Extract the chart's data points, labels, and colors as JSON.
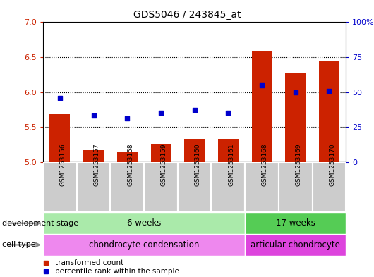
{
  "title": "GDS5046 / 243845_at",
  "samples": [
    "GSM1253156",
    "GSM1253157",
    "GSM1253158",
    "GSM1253159",
    "GSM1253160",
    "GSM1253161",
    "GSM1253168",
    "GSM1253169",
    "GSM1253170"
  ],
  "bar_values": [
    5.68,
    5.17,
    5.15,
    5.25,
    5.33,
    5.33,
    6.58,
    6.28,
    6.44
  ],
  "dot_values": [
    46,
    33,
    31,
    35,
    37,
    35,
    55,
    50,
    51
  ],
  "ylim_left": [
    5.0,
    7.0
  ],
  "ylim_right": [
    0,
    100
  ],
  "yticks_left": [
    5.0,
    5.5,
    6.0,
    6.5,
    7.0
  ],
  "yticks_right": [
    0,
    25,
    50,
    75,
    100
  ],
  "ytick_labels_right": [
    "0",
    "25",
    "50",
    "75",
    "100%"
  ],
  "bar_color": "#cc2200",
  "dot_color": "#0000cc",
  "development_stages": [
    {
      "label": "6 weeks",
      "start": 0,
      "end": 6,
      "color": "#aaeaaa"
    },
    {
      "label": "17 weeks",
      "start": 6,
      "end": 9,
      "color": "#55cc55"
    }
  ],
  "cell_types": [
    {
      "label": "chondrocyte condensation",
      "start": 0,
      "end": 6,
      "color": "#ee88ee"
    },
    {
      "label": "articular chondrocyte",
      "start": 6,
      "end": 9,
      "color": "#dd44dd"
    }
  ],
  "dev_stage_label": "development stage",
  "cell_type_label": "cell type",
  "legend_bar": "transformed count",
  "legend_dot": "percentile rank within the sample",
  "left_axis_color": "#cc2200",
  "right_axis_color": "#0000cc",
  "sample_box_color": "#cccccc",
  "grid_dotted_levels": [
    5.5,
    6.0,
    6.5
  ]
}
